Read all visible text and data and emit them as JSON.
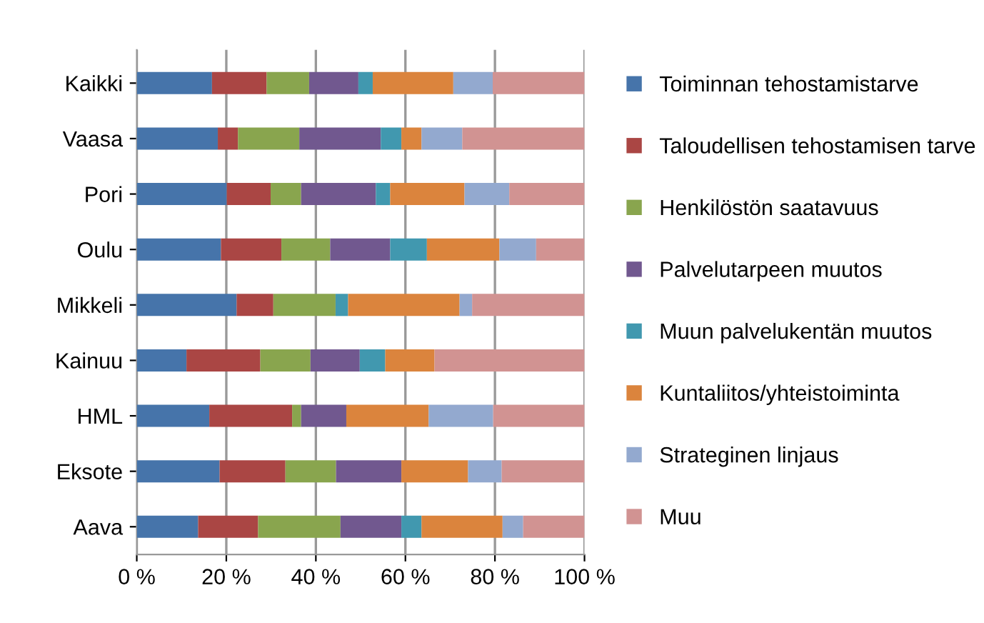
{
  "chart_data": {
    "type": "bar",
    "orientation": "horizontal",
    "stacked": true,
    "categories": [
      "Kaikki",
      "Vaasa",
      "Pori",
      "Oulu",
      "Mikkeli",
      "Kainuu",
      "HML",
      "Eksote",
      "Aava"
    ],
    "series": [
      {
        "name": "Toiminnan tehostamistarve",
        "color": "#4674aa",
        "values": [
          16.8,
          18.1,
          20.1,
          18.8,
          22.3,
          11.1,
          16.2,
          18.5,
          13.7
        ]
      },
      {
        "name": "Taloudellisen tehostamisen tarve",
        "color": "#aa4644",
        "values": [
          12.2,
          4.5,
          9.8,
          13.5,
          8.2,
          16.5,
          18.5,
          14.7,
          13.4
        ]
      },
      {
        "name": "Henkilöstön saatavuus",
        "color": "#89a54e",
        "values": [
          9.5,
          13.7,
          6.8,
          10.9,
          13.9,
          11.2,
          2.0,
          11.3,
          18.4
        ]
      },
      {
        "name": "Palvelutarpeen muutos",
        "color": "#71588f",
        "values": [
          11.0,
          18.2,
          16.7,
          13.4,
          0,
          11.0,
          10.1,
          14.6,
          13.6
        ]
      },
      {
        "name": "Muun palvelukentän muutos",
        "color": "#4198af",
        "values": [
          3.2,
          4.6,
          3.2,
          8.2,
          2.8,
          5.7,
          0,
          0,
          4.5
        ]
      },
      {
        "name": "Kuntaliitos/yhteistoiminta",
        "color": "#db843d",
        "values": [
          18.0,
          4.5,
          16.6,
          16.2,
          24.9,
          11.0,
          18.4,
          14.9,
          18.1
        ]
      },
      {
        "name": "Strateginen linjaus",
        "color": "#93a9cf",
        "values": [
          8.8,
          9.1,
          10.0,
          8.2,
          2.8,
          0,
          14.4,
          7.5,
          4.6
        ]
      },
      {
        "name": "Muu",
        "color": "#d19392",
        "values": [
          20.5,
          27.3,
          16.8,
          10.8,
          25.1,
          33.5,
          20.4,
          18.5,
          13.7
        ]
      }
    ],
    "xlim": [
      0,
      100
    ],
    "xticks": [
      {
        "value": 0,
        "label": "0 %"
      },
      {
        "value": 20,
        "label": "20 %"
      },
      {
        "value": 40,
        "label": "40 %"
      },
      {
        "value": 60,
        "label": "60 %"
      },
      {
        "value": 80,
        "label": "80 %"
      },
      {
        "value": 100,
        "label": "100 %"
      }
    ],
    "grid": "x",
    "legend": "right"
  }
}
